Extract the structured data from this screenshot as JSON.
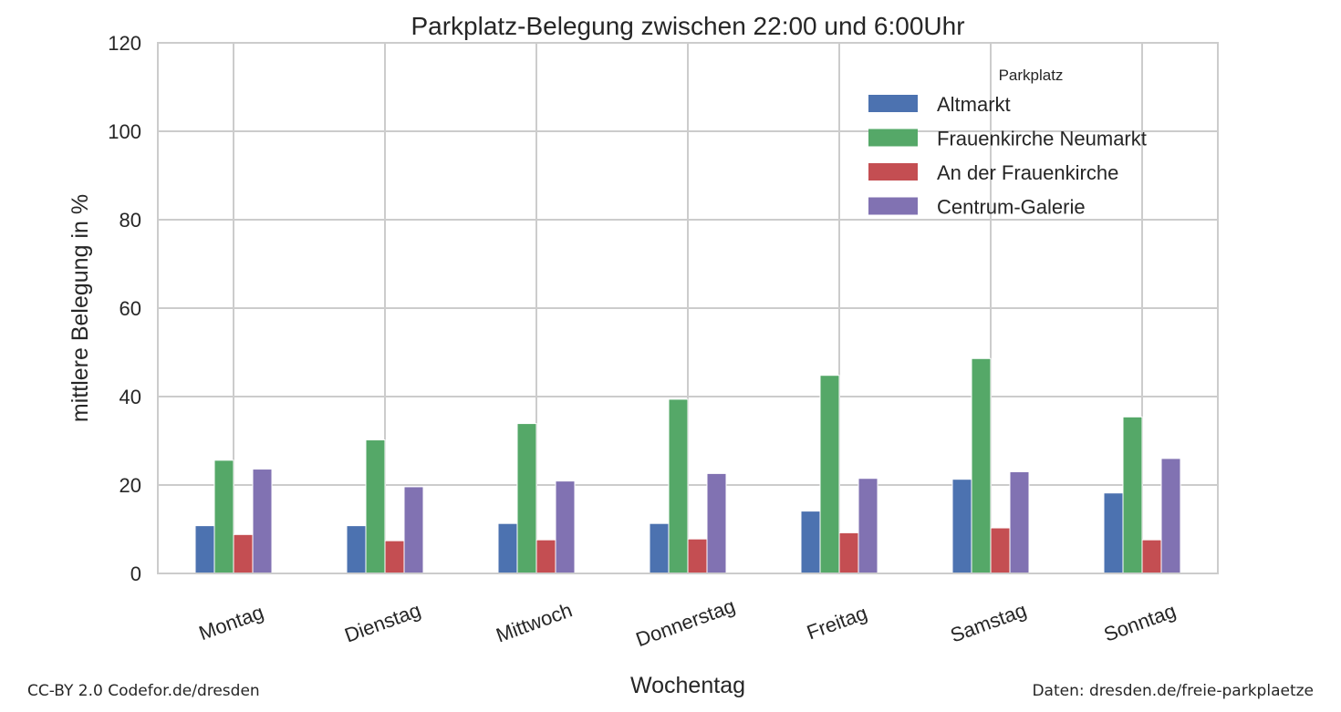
{
  "chart_data": {
    "type": "bar",
    "title": "Parkplatz-Belegung zwischen 22:00 und 6:00Uhr",
    "xlabel": "Wochentag",
    "ylabel": "mittlere Belegung in %",
    "ylim": [
      0,
      120
    ],
    "yticks": [
      "0",
      "20",
      "40",
      "60",
      "80",
      "100",
      "120"
    ],
    "grid": true,
    "categories": [
      "Montag",
      "Dienstag",
      "Mittwoch",
      "Donnerstag",
      "Freitag",
      "Samstag",
      "Sonntag"
    ],
    "legend": {
      "title": "Parkplatz",
      "placement": "top-right"
    },
    "series": [
      {
        "name": "Altmarkt",
        "color": "#4c72b0",
        "values": [
          10.8,
          10.8,
          11.3,
          11.3,
          14.1,
          21.3,
          18.2
        ]
      },
      {
        "name": "Frauenkirche Neumarkt",
        "color": "#55a868",
        "values": [
          25.6,
          30.2,
          33.9,
          39.4,
          44.8,
          48.6,
          35.4
        ]
      },
      {
        "name": "An der Frauenkirche",
        "color": "#c44e52",
        "values": [
          8.8,
          7.4,
          7.6,
          7.8,
          9.2,
          10.3,
          7.6
        ]
      },
      {
        "name": "Centrum-Galerie",
        "color": "#8172b2",
        "values": [
          23.6,
          19.6,
          20.9,
          22.6,
          21.5,
          23.0,
          26.0
        ]
      }
    ]
  },
  "footer": {
    "license": "CC-BY 2.0 Codefor.de/dresden",
    "source": "Daten: dresden.de/freie-parkplaetze"
  }
}
